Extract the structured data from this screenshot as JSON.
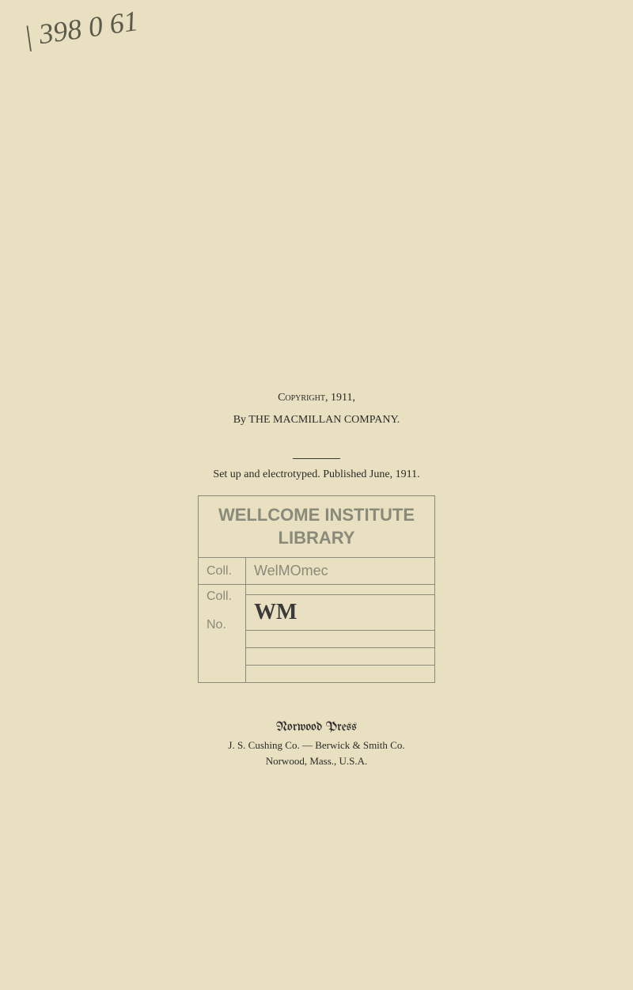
{
  "handwritten": {
    "top_note": "| 398 0 61"
  },
  "copyright": {
    "line": "Copyright, 1911,",
    "by": "By THE MACMILLAN COMPANY."
  },
  "setup": {
    "line": "Set up and electrotyped.   Published June, 1911."
  },
  "stamp": {
    "header_line1": "WELLCOME INSTITUTE",
    "header_line2": "LIBRARY",
    "rows": {
      "coll1_label": "Coll.",
      "coll1_value": "WelMOmec",
      "coll2_label": "Coll.",
      "coll2_value": "",
      "no_label": "No.",
      "no_value": "WM"
    }
  },
  "press": {
    "name": "Norwood Press",
    "line2": "J. S. Cushing Co. — Berwick & Smith Co.",
    "line3": "Norwood, Mass., U.S.A."
  },
  "colors": {
    "page_bg": "#e8e0c0",
    "text": "#2a2a2a",
    "stamp": "#8a8a7a"
  }
}
